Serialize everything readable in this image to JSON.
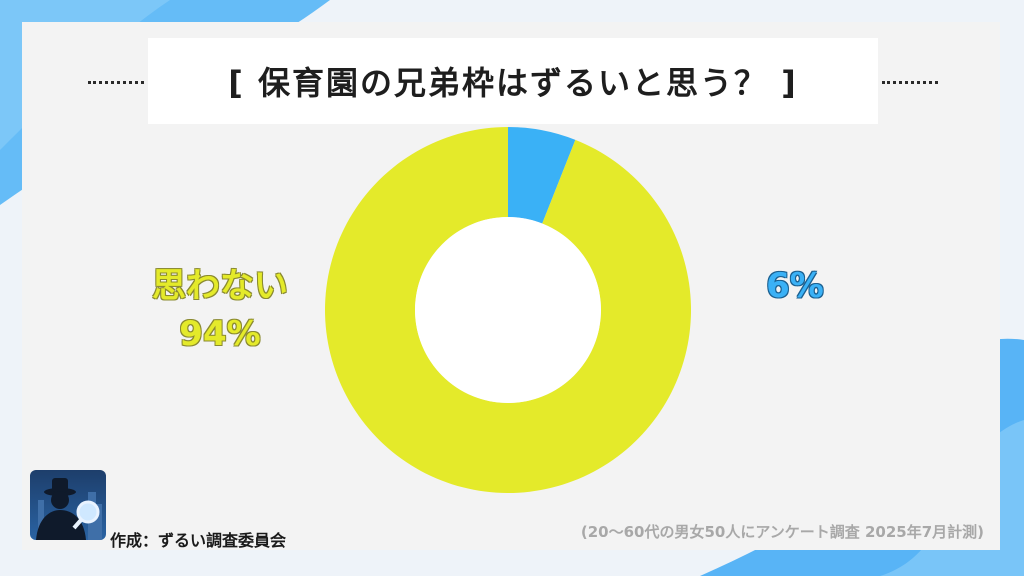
{
  "title": "[ 保育園の兄弟枠はずるいと思う？ ]",
  "labels": {
    "no_text": "思わない",
    "no_pct": "94%",
    "yes_pct": "6%"
  },
  "credit": "作成：ずるい調査委員会",
  "note": "(20〜60代の男女50人にアンケート調査 2025年7月計測)",
  "colors": {
    "yes": "#3ab1f6",
    "no": "#e4ea2a",
    "background_accent": "#5cb8f5"
  },
  "logo_icon": "detective-magnifier-icon",
  "chart_data": {
    "type": "pie",
    "variant": "donut",
    "title": "[ 保育園の兄弟枠はずるいと思う？ ]",
    "slices": [
      {
        "label": "",
        "value": 6,
        "color": "#3ab1f6"
      },
      {
        "label": "思わない",
        "value": 94,
        "color": "#e4ea2a"
      }
    ],
    "start_angle_deg": 0,
    "direction": "clockwise"
  }
}
